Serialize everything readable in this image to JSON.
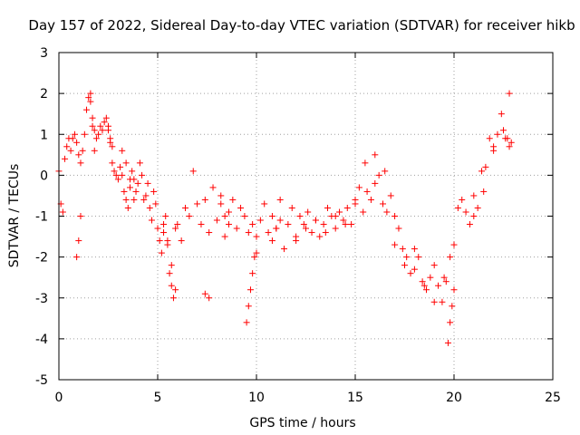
{
  "chart_data": {
    "type": "scatter",
    "title": "Day 157 of 2022, Sidereal Day-to-day VTEC variation (SDTVAR) for receiver hikb",
    "xlabel": "GPS time / hours",
    "ylabel": "SDTVAR / TECUs",
    "xlim": [
      0,
      25
    ],
    "ylim": [
      -5,
      3
    ],
    "xticks": [
      "0",
      "5",
      "10",
      "15",
      "20",
      "25"
    ],
    "yticks": [
      "3",
      "2",
      "1",
      "0",
      "-1",
      "-2",
      "-3",
      "-4",
      "-5"
    ],
    "grid": true,
    "marker": "+",
    "colors": {
      "series": "#ff0000"
    },
    "series": [
      {
        "name": "SDTVAR",
        "x": [
          0.0,
          0.1,
          0.2,
          0.3,
          0.4,
          0.5,
          0.6,
          0.7,
          0.8,
          0.9,
          1.0,
          1.1,
          1.2,
          1.3,
          1.4,
          1.5,
          1.6,
          1.7,
          1.8,
          1.9,
          2.0,
          2.1,
          2.2,
          2.3,
          2.4,
          2.5,
          2.6,
          2.7,
          2.8,
          2.9,
          3.0,
          3.1,
          3.2,
          3.3,
          3.4,
          3.5,
          3.6,
          3.7,
          3.8,
          3.9,
          4.0,
          4.1,
          4.2,
          4.3,
          4.4,
          4.5,
          4.6,
          4.7,
          4.8,
          4.9,
          5.0,
          5.1,
          5.2,
          5.3,
          5.4,
          5.5,
          5.6,
          5.7,
          5.8,
          5.9,
          6.0,
          6.2,
          6.4,
          6.6,
          6.8,
          7.0,
          7.2,
          7.4,
          7.6,
          7.8,
          8.0,
          8.2,
          8.4,
          8.6,
          8.8,
          9.0,
          9.2,
          9.4,
          9.6,
          9.8,
          10.0,
          10.2,
          10.4,
          10.6,
          10.8,
          11.0,
          11.2,
          11.4,
          11.6,
          11.8,
          12.0,
          12.2,
          12.4,
          12.6,
          12.8,
          13.0,
          13.2,
          13.4,
          13.6,
          13.8,
          14.0,
          14.2,
          14.4,
          14.6,
          14.8,
          15.0,
          15.2,
          15.4,
          15.6,
          15.8,
          16.0,
          16.2,
          16.4,
          16.6,
          16.8,
          17.0,
          17.2,
          17.4,
          17.6,
          17.8,
          18.0,
          18.2,
          18.4,
          18.6,
          18.8,
          19.0,
          19.2,
          19.4,
          19.6,
          19.8,
          20.0,
          20.2,
          20.4,
          20.6,
          20.8,
          21.0,
          21.2,
          21.4,
          21.6,
          21.8,
          22.0,
          22.2,
          22.4,
          22.6,
          22.8,
          0.9,
          1.0,
          1.1,
          5.3,
          5.5,
          5.7,
          5.9,
          7.4,
          7.6,
          9.5,
          9.6,
          9.7,
          9.8,
          9.9,
          10.0,
          15.0,
          15.5,
          16.0,
          16.5,
          17.0,
          17.5,
          18.0,
          18.5,
          19.0,
          19.5,
          19.7,
          19.8,
          19.9,
          20.0,
          21.0,
          21.5,
          22.0,
          22.5,
          22.7,
          22.8,
          22.9,
          1.6,
          1.7,
          1.8,
          2.5,
          2.6,
          2.7,
          12.0,
          12.5,
          13.0,
          13.5,
          14.0,
          14.5,
          3.2,
          3.4,
          3.6,
          3.8,
          8.2,
          8.4,
          8.6,
          10.8,
          11.0,
          11.2
        ],
        "y": [
          0.1,
          -0.7,
          -0.9,
          0.4,
          0.7,
          0.9,
          0.6,
          0.9,
          1.0,
          0.8,
          0.5,
          0.3,
          0.6,
          1.0,
          1.6,
          1.9,
          1.8,
          1.2,
          0.6,
          0.9,
          1.0,
          1.2,
          1.1,
          1.3,
          1.4,
          1.2,
          0.8,
          0.3,
          0.1,
          0.0,
          -0.1,
          0.2,
          0.0,
          -0.4,
          -0.6,
          -0.8,
          -0.3,
          0.1,
          -0.1,
          -0.4,
          -0.2,
          0.3,
          0.0,
          -0.6,
          -0.5,
          -0.2,
          -0.8,
          -1.1,
          -0.4,
          -0.7,
          -1.3,
          -1.6,
          -1.9,
          -1.2,
          -1.0,
          -1.6,
          -2.4,
          -2.7,
          -3.0,
          -1.3,
          -1.2,
          -1.6,
          -0.8,
          -1.0,
          0.1,
          -0.7,
          -1.2,
          -0.6,
          -1.4,
          -0.3,
          -1.1,
          -0.5,
          -1.5,
          -1.2,
          -0.6,
          -1.3,
          -0.8,
          -1.0,
          -1.4,
          -1.2,
          -1.5,
          -1.1,
          -0.7,
          -1.4,
          -1.6,
          -1.3,
          -0.6,
          -1.8,
          -1.2,
          -0.8,
          -1.5,
          -1.0,
          -1.2,
          -0.9,
          -1.4,
          -1.1,
          -1.5,
          -1.2,
          -0.8,
          -1.0,
          -1.3,
          -0.9,
          -1.1,
          -0.8,
          -1.2,
          -0.6,
          -0.3,
          -0.9,
          -0.4,
          -0.6,
          -0.2,
          0.0,
          -0.7,
          -0.9,
          -0.5,
          -1.0,
          -1.3,
          -1.8,
          -2.0,
          -2.4,
          -2.3,
          -2.0,
          -2.6,
          -2.8,
          -2.5,
          -2.2,
          -2.7,
          -3.1,
          -2.6,
          -2.0,
          -1.7,
          -0.8,
          -0.6,
          -0.9,
          -1.2,
          -0.5,
          -0.8,
          0.1,
          0.2,
          0.9,
          0.6,
          1.0,
          1.5,
          0.9,
          2.0,
          -2.0,
          -1.6,
          -1.0,
          -1.4,
          -1.7,
          -2.2,
          -2.8,
          -2.9,
          -3.0,
          -3.6,
          -3.2,
          -2.8,
          -2.4,
          -2.0,
          -1.9,
          -0.7,
          0.3,
          0.5,
          0.1,
          -1.7,
          -2.2,
          -1.8,
          -2.7,
          -3.1,
          -2.5,
          -4.1,
          -3.6,
          -3.2,
          -2.8,
          -1.0,
          -0.4,
          0.7,
          1.1,
          0.9,
          0.7,
          0.8,
          2.0,
          1.4,
          1.1,
          1.1,
          0.9,
          0.7,
          -1.6,
          -1.3,
          -1.1,
          -1.4,
          -1.0,
          -1.2,
          0.6,
          0.3,
          -0.1,
          -0.6,
          -0.7,
          -1.0,
          -0.9,
          -1.0,
          -1.3,
          -1.1
        ]
      }
    ]
  }
}
